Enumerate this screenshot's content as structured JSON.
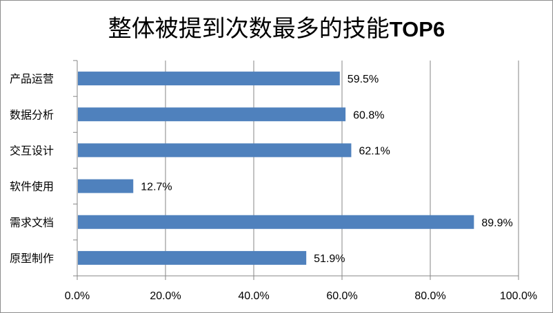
{
  "chart_data": {
    "type": "bar",
    "orientation": "horizontal",
    "title": "整体被提到次数最多的技能TOP6",
    "title_parts": {
      "cjk": "整体被提到次数最多的技能",
      "latin": "TOP6"
    },
    "categories": [
      "产品运营",
      "数据分析",
      "交互设计",
      "软件使用",
      "需求文档",
      "原型制作"
    ],
    "values": [
      59.5,
      60.8,
      62.1,
      12.7,
      89.9,
      51.9
    ],
    "data_labels": [
      "59.5%",
      "60.8%",
      "62.1%",
      "12.7%",
      "89.9%",
      "51.9%"
    ],
    "x_ticks": [
      0,
      20,
      40,
      60,
      80,
      100
    ],
    "x_tick_labels": [
      "0.0%",
      "20.0%",
      "40.0%",
      "60.0%",
      "80.0%",
      "100.0%"
    ],
    "xlim": [
      0,
      100
    ],
    "xlabel": "",
    "ylabel": "",
    "grid": "vertical",
    "legend": "none",
    "bar_color": "#4f81bd",
    "grid_color": "#868686"
  }
}
